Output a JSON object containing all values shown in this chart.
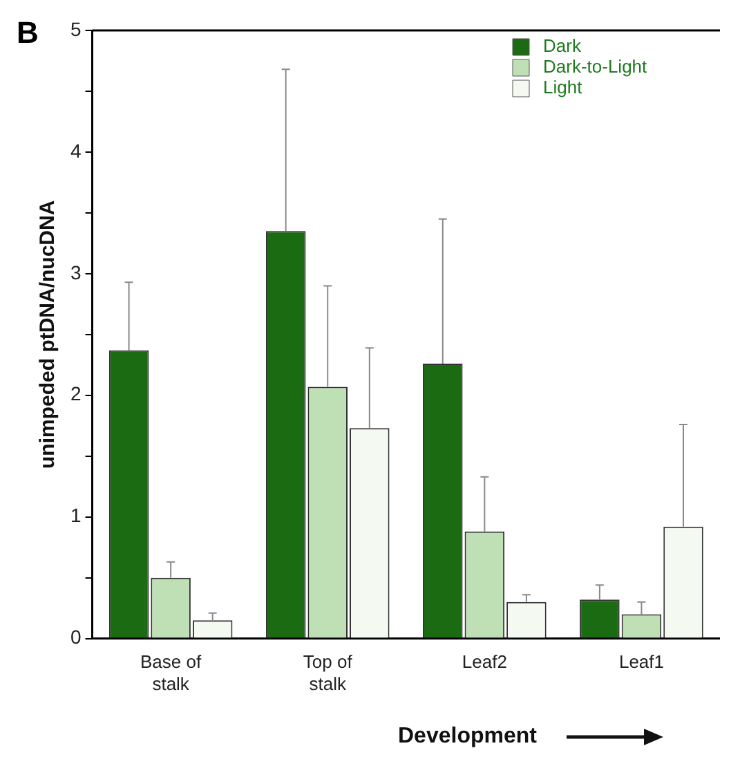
{
  "chart_data": {
    "type": "bar",
    "xlabel": "Development",
    "ylabel": "unimpeded ptDNA/nucDNA",
    "annotations": [
      "B"
    ],
    "categories": [
      "Base of stalk",
      "Top of stalk",
      "Leaf2",
      "Leaf1"
    ],
    "series": [
      {
        "name": "Dark",
        "color": "#1a6b12",
        "values": [
          2.37,
          3.35,
          2.26,
          0.32
        ],
        "errors": [
          [
            2.37,
            2.93
          ],
          [
            3.35,
            4.68
          ],
          [
            2.26,
            3.45
          ],
          [
            0.32,
            0.44
          ]
        ]
      },
      {
        "name": "Dark-to-Light",
        "color": "#bfe0b5",
        "values": [
          0.5,
          2.07,
          0.88,
          0.2
        ],
        "errors": [
          [
            0.5,
            0.63
          ],
          [
            2.07,
            2.9
          ],
          [
            0.88,
            1.33
          ],
          [
            0.2,
            0.3
          ]
        ]
      },
      {
        "name": "Light",
        "color": "#f4faf2",
        "values": [
          0.15,
          1.73,
          0.3,
          0.92
        ],
        "errors": [
          [
            0.15,
            0.21
          ],
          [
            1.73,
            2.39
          ],
          [
            0.3,
            0.36
          ],
          [
            0.92,
            1.76
          ]
        ]
      }
    ],
    "ylim": [
      0,
      5
    ],
    "yticks": [
      0,
      {
        "value": 0.5,
        "label": null
      },
      1,
      {
        "value": 1.5,
        "label": null
      },
      2,
      {
        "value": 2.5,
        "label": null
      },
      3,
      {
        "value": 3.5,
        "label": null
      },
      4,
      {
        "value": 4.5,
        "label": null
      },
      5
    ],
    "grid": false,
    "legend": "top right"
  }
}
